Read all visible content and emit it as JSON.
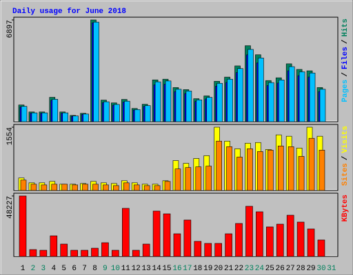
{
  "title": "Daily usage for June 2018",
  "legend_separator": "/",
  "chart_data": [
    {
      "type": "bar",
      "ylim": [
        0,
        6897
      ],
      "yticks": [
        6897
      ],
      "series": [
        {
          "name": "Hits",
          "color": "#00805c",
          "values": [
            1134,
            661,
            661,
            1653,
            661,
            425,
            567,
            6897,
            1464,
            1275,
            1511,
            897,
            1181,
            2834,
            2881,
            2314,
            2173,
            1559,
            1748,
            2740,
            3023,
            3779,
            5149,
            4535,
            2787,
            2976,
            3921,
            3543,
            3448,
            2314,
            0
          ]
        },
        {
          "name": "Files",
          "color": "#0000ff",
          "values": [
            1000,
            580,
            580,
            1450,
            580,
            370,
            500,
            6700,
            1290,
            1120,
            1330,
            790,
            1040,
            2500,
            2540,
            2040,
            1910,
            1370,
            1540,
            2410,
            2660,
            3330,
            4530,
            3990,
            2450,
            2620,
            3450,
            3120,
            3030,
            2040,
            0
          ]
        },
        {
          "name": "Pages",
          "color": "#00c0ff",
          "values": [
            1040,
            600,
            600,
            1520,
            600,
            390,
            520,
            6750,
            1350,
            1170,
            1390,
            820,
            1090,
            2700,
            2760,
            2200,
            2080,
            1480,
            1650,
            2600,
            2880,
            3600,
            4900,
            4320,
            2650,
            2830,
            3730,
            3380,
            3300,
            2200,
            0
          ]
        }
      ]
    },
    {
      "type": "bar",
      "ylim": [
        0,
        1554
      ],
      "yticks": [
        1554
      ],
      "series": [
        {
          "name": "Visits",
          "color": "#ffff00",
          "values": [
            307,
            188,
            188,
            222,
            154,
            154,
            171,
            222,
            188,
            171,
            239,
            188,
            154,
            154,
            239,
            734,
            666,
            785,
            854,
            1554,
            1212,
            1025,
            1161,
            1178,
            1008,
            1366,
            1332,
            1042,
            1554,
            1332,
            0
          ]
        },
        {
          "name": "Sites",
          "color": "#ff8000",
          "values": [
            256,
            154,
            137,
            154,
            154,
            137,
            154,
            154,
            137,
            120,
            188,
            137,
            120,
            120,
            222,
            529,
            563,
            580,
            598,
            1212,
            1076,
            820,
            1025,
            956,
            990,
            1093,
            1076,
            837,
            1281,
            990,
            0
          ]
        }
      ]
    },
    {
      "type": "bar",
      "ylim": [
        0,
        48227
      ],
      "yticks": [
        48227
      ],
      "categories": [
        "1",
        "2",
        "3",
        "4",
        "5",
        "6",
        "7",
        "8",
        "9",
        "10",
        "11",
        "12",
        "13",
        "14",
        "15",
        "16",
        "17",
        "18",
        "19",
        "20",
        "21",
        "22",
        "23",
        "24",
        "25",
        "26",
        "27",
        "28",
        "29",
        "30",
        "31"
      ],
      "category_colors": [
        "#000000",
        "#00805c",
        "#00805c",
        "#000000",
        "#000000",
        "#000000",
        "#000000",
        "#000000",
        "#00805c",
        "#00805c",
        "#000000",
        "#000000",
        "#000000",
        "#000000",
        "#000000",
        "#00805c",
        "#00805c",
        "#000000",
        "#000000",
        "#000000",
        "#000000",
        "#000000",
        "#00805c",
        "#00805c",
        "#000000",
        "#000000",
        "#000000",
        "#000000",
        "#000000",
        "#00805c",
        "#00805c"
      ],
      "series": [
        {
          "name": "KBytes",
          "color": "#ff0000",
          "values": [
            48227,
            5480,
            4932,
            16441,
            9865,
            4932,
            4932,
            6576,
            10961,
            4932,
            38363,
            4932,
            9865,
            36171,
            33978,
            18085,
            29046,
            12057,
            10413,
            10413,
            18085,
            26306,
            40007,
            35623,
            23565,
            25758,
            32882,
            27402,
            21921,
            13153,
            0
          ]
        }
      ]
    }
  ]
}
